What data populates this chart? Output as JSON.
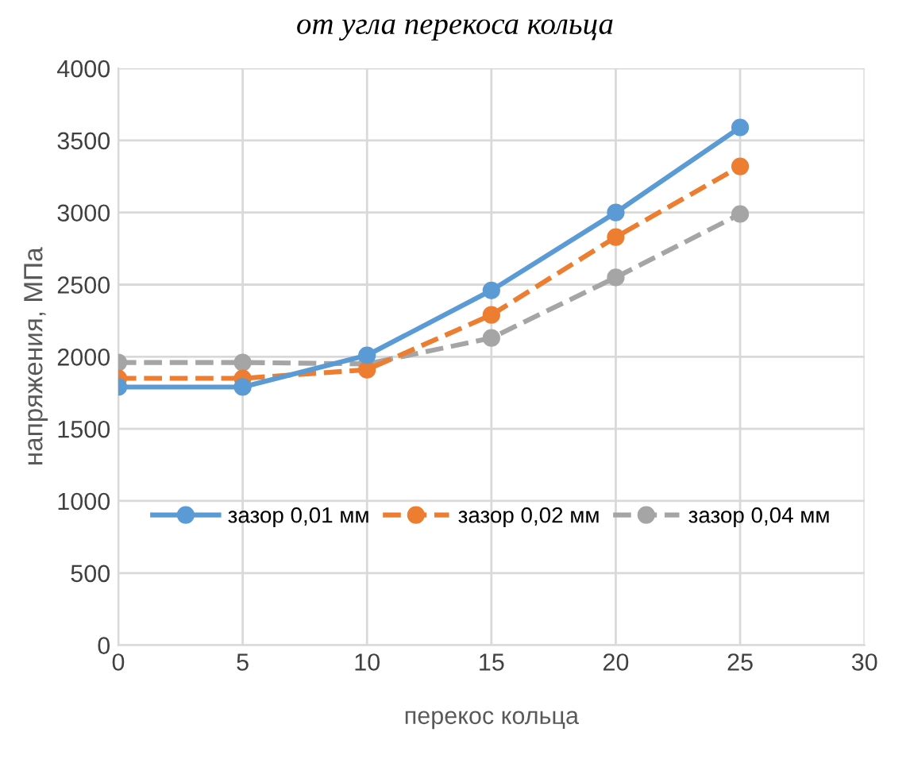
{
  "chart_data": {
    "type": "line",
    "title": "от угла перекоса кольца",
    "xlabel": "перекос кольца",
    "ylabel": "напряжения, МПа",
    "x": [
      0,
      5,
      10,
      15,
      20,
      25
    ],
    "series": [
      {
        "name": "зазор 0,01 мм",
        "color": "#5b9bd5",
        "values": [
          1790,
          1790,
          2010,
          2460,
          3000,
          3590
        ],
        "line_style": "solid"
      },
      {
        "name": "зазор 0,02 мм",
        "color": "#ed7d31",
        "values": [
          1850,
          1850,
          1910,
          2290,
          2830,
          3320
        ],
        "line_style": "dashed"
      },
      {
        "name": "зазор 0,04 мм",
        "color": "#a5a5a5",
        "values": [
          1960,
          1960,
          1950,
          2130,
          2550,
          2990
        ],
        "line_style": "dashed"
      }
    ],
    "xlim": [
      0,
      30
    ],
    "xticks": [
      0,
      5,
      10,
      15,
      20,
      25,
      30
    ],
    "ylim": [
      0,
      4000
    ],
    "yticks": [
      0,
      500,
      1000,
      1500,
      2000,
      2500,
      3000,
      3500,
      4000
    ],
    "grid": true,
    "legend": "bottom",
    "marker": "circle"
  }
}
